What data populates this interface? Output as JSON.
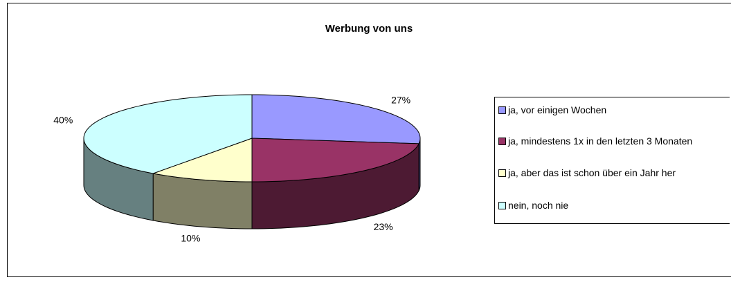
{
  "chart_data": {
    "type": "pie3d",
    "title": "Werbung von uns",
    "categories": [
      "ja, vor einigen Wochen",
      "ja, mindestens 1x in den letzten 3 Monaten",
      "ja, aber das ist schon über ein Jahr her",
      "nein, noch nie"
    ],
    "values": [
      27,
      23,
      10,
      40
    ],
    "value_labels": [
      "27%",
      "23%",
      "10%",
      "40%"
    ],
    "colors": [
      "#9999ff",
      "#993366",
      "#ffffcc",
      "#ccffff"
    ],
    "legend": "right"
  }
}
